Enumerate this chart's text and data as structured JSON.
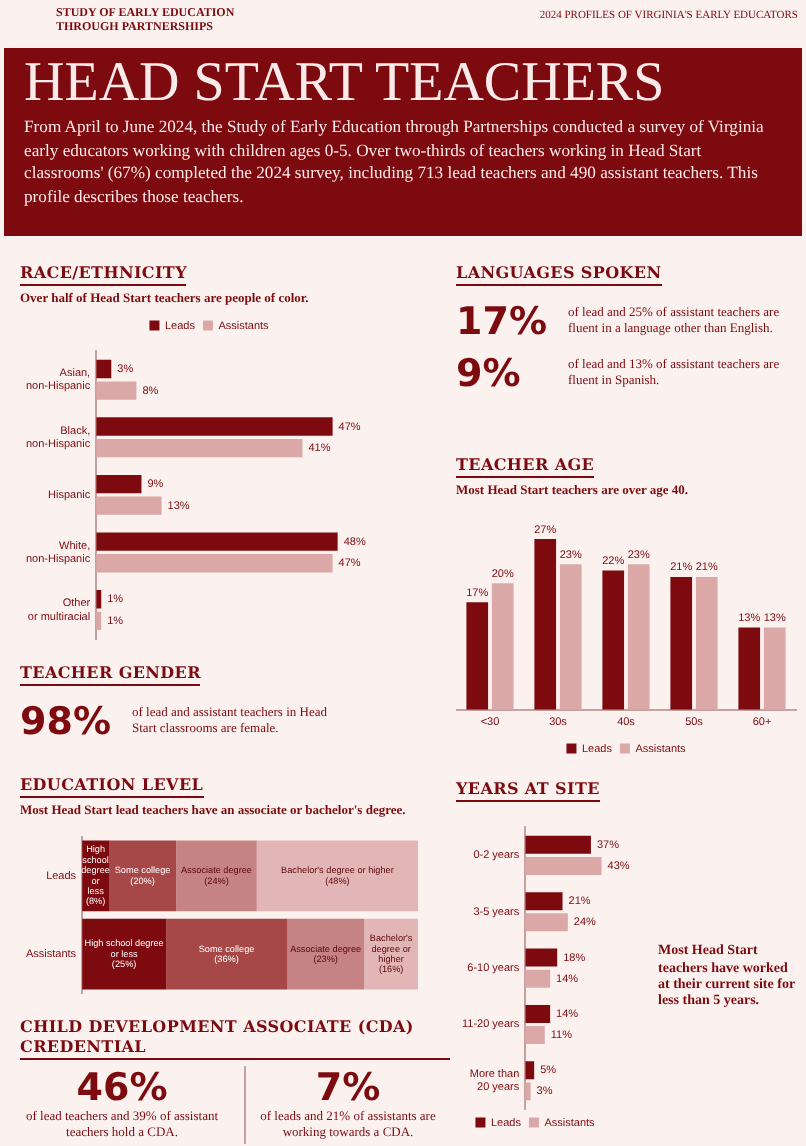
{
  "chart_data": [
    {
      "type": "other",
      "title": "HEAD START TEACHERS",
      "subtitle": "From April to June 2024, the Study of Early Education through Partnerships conducted a survey of Virginia early educators working with children ages 0-5. Over two-thirds of teachers working in Head Start classrooms' (67%) completed the 2024 survey, including 713 lead teachers and 490 assistant teachers. This profile describes those teachers.",
      "annotations": [
        "STUDY OF EARLY EDUCATION THROUGH PARTNERSHIPS",
        "2024 PROFILES OF VIRGINIA'S EARLY EDUCATORS"
      ]
    },
    {
      "type": "bar",
      "orientation": "horizontal",
      "title": "RACE/ETHNICITY",
      "subtitle": "Over half of Head Start teachers are people of color.",
      "categories": [
        "Asian, non-Hispanic",
        "Black, non-Hispanic",
        "Hispanic",
        "White, non-Hispanic",
        "Other or multiracial"
      ],
      "series": [
        {
          "name": "Leads",
          "color": "#7d0a0e",
          "values": [
            3,
            47,
            9,
            48,
            1
          ],
          "value_labels": [
            "3%",
            "47%",
            "9%",
            "48%",
            "1%"
          ]
        },
        {
          "name": "Assistants",
          "color": "#dba8a8",
          "values": [
            8,
            41,
            13,
            47,
            1
          ],
          "value_labels": [
            "8%",
            "41%",
            "13%",
            "47%",
            "1%"
          ]
        }
      ],
      "legend": "top",
      "tick_labels": "y"
    },
    {
      "type": "other",
      "title": "LANGUAGES SPOKEN",
      "annotations": [
        "17%",
        "of lead and 25% of assistant teachers are fluent in a language other than English.",
        "9%",
        "of lead and 13% of assistant teachers are fluent in Spanish."
      ]
    },
    {
      "type": "bar",
      "title": "TEACHER AGE",
      "subtitle": "Most Head Start teachers are over age 40.",
      "categories": [
        "<30",
        "30s",
        "40s",
        "50s",
        "60+"
      ],
      "series": [
        {
          "name": "Leads",
          "color": "#7d0a0e",
          "values": [
            17,
            27,
            22,
            21,
            13
          ],
          "value_labels": [
            "17%",
            "27%",
            "22%",
            "21%",
            "13%"
          ]
        },
        {
          "name": "Assistants",
          "color": "#dba8a8",
          "values": [
            20,
            23,
            23,
            21,
            13
          ],
          "value_labels": [
            "20%",
            "23%",
            "23%",
            "21%",
            "13%"
          ]
        }
      ],
      "legend": "bottom",
      "tick_labels": "x"
    },
    {
      "type": "other",
      "title": "TEACHER GENDER",
      "annotations": [
        "98%",
        "of lead and assistant teachers in Head Start classrooms are female."
      ]
    },
    {
      "type": "bar",
      "orientation": "horizontal",
      "stacked": true,
      "title": "EDUCATION LEVEL",
      "subtitle": "Most Head Start lead teachers have an associate or bachelor's degree.",
      "categories": [
        "Leads",
        "Assistants"
      ],
      "series": [
        {
          "name": "High school degree or less",
          "color": "#7d0a0e",
          "values": [
            8,
            25
          ],
          "value_labels": [
            "(8%)",
            "(25%)"
          ]
        },
        {
          "name": "Some college",
          "color": "#a64848",
          "values": [
            20,
            36
          ],
          "value_labels": [
            "(20%)",
            "(36%)"
          ]
        },
        {
          "name": "Associate degree",
          "color": "#c68383",
          "values": [
            24,
            23
          ],
          "value_labels": [
            "(24%)",
            "(23%)"
          ]
        },
        {
          "name": "Bachelor's degree or higher",
          "color": "#e2b6b6",
          "values": [
            48,
            16
          ],
          "value_labels": [
            "(48%)",
            "(16%)"
          ]
        }
      ],
      "tick_labels": "y"
    },
    {
      "type": "bar",
      "orientation": "horizontal",
      "title": "YEARS AT SITE",
      "categories": [
        "0-2 years",
        "3-5 years",
        "6-10 years",
        "11-20 years",
        "More than 20 years"
      ],
      "series": [
        {
          "name": "Leads",
          "color": "#7d0a0e",
          "values": [
            37,
            21,
            18,
            14,
            5
          ],
          "value_labels": [
            "37%",
            "21%",
            "18%",
            "14%",
            "5%"
          ]
        },
        {
          "name": "Assistants",
          "color": "#dba8a8",
          "values": [
            43,
            24,
            14,
            11,
            3
          ],
          "value_labels": [
            "43%",
            "24%",
            "14%",
            "11%",
            "3%"
          ]
        }
      ],
      "legend": "bottom",
      "tick_labels": "y",
      "annotations": [
        "Most Head Start teachers have worked at their current site for less than 5 years."
      ]
    },
    {
      "type": "other",
      "title": "CHILD DEVELOPMENT ASSOCIATE (CDA) CREDENTIAL",
      "annotations": [
        "46%",
        "of lead teachers and 39% of assistant teachers hold a CDA.",
        "7%",
        "of leads and 21% of assistants are working towards a CDA."
      ]
    }
  ]
}
